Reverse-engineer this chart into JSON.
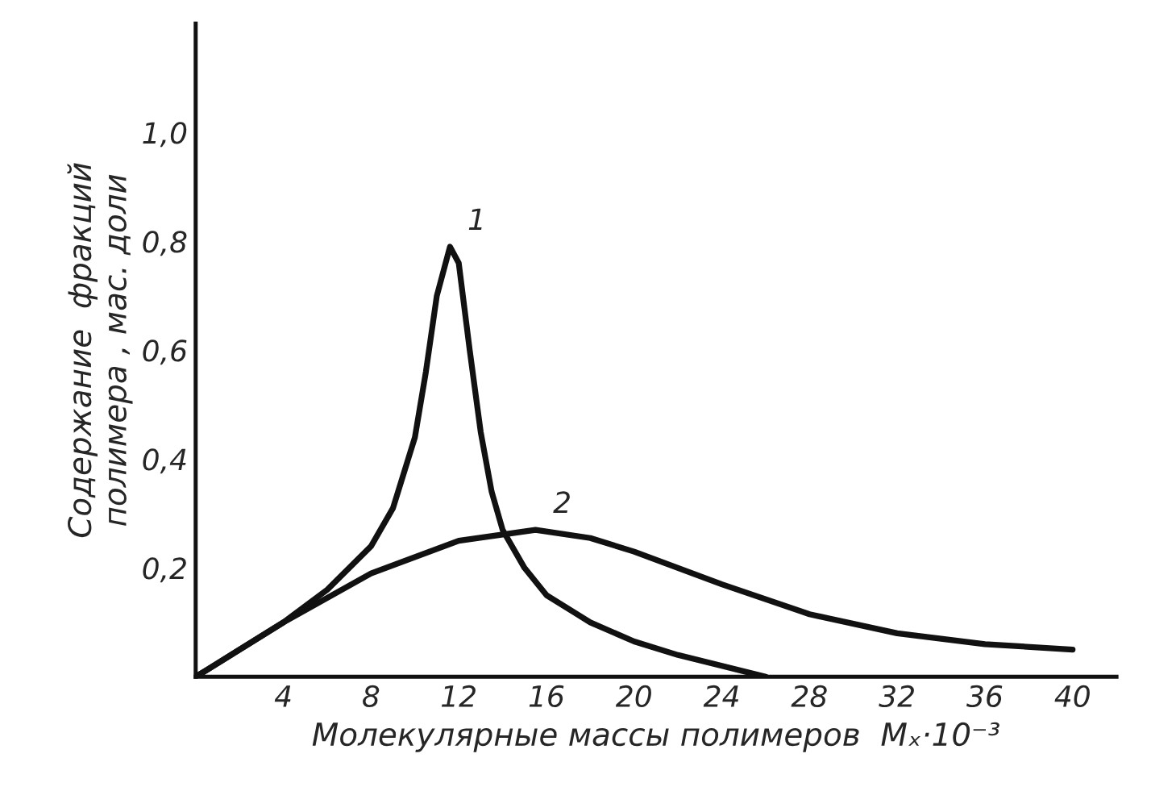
{
  "chart_data": {
    "type": "line",
    "xlabel": "Молекулярные массы полимеров  Mₓ·10⁻³",
    "ylabel": "Содержание  фракций\nполимера , мас. доли",
    "xlim": [
      0,
      42
    ],
    "ylim": [
      0,
      1.2
    ],
    "xticks": [
      4,
      8,
      12,
      16,
      20,
      24,
      28,
      32,
      36,
      40
    ],
    "yticks": [
      {
        "value": 0.2,
        "label": "0,2"
      },
      {
        "value": 0.4,
        "label": "0,4"
      },
      {
        "value": 0.6,
        "label": "0,6"
      },
      {
        "value": 0.8,
        "label": "0,8"
      },
      {
        "value": 1.0,
        "label": "1,0"
      }
    ],
    "grid": false,
    "legend": false,
    "marker": "none",
    "line_style": "solid",
    "series": [
      {
        "name": "1",
        "color": "#111111",
        "x": [
          0,
          2,
          4,
          6,
          8,
          9,
          10,
          10.5,
          11,
          11.6,
          12,
          12.5,
          13,
          13.5,
          14,
          15,
          16,
          18,
          20,
          22,
          24,
          26
        ],
        "values": [
          0,
          0.05,
          0.1,
          0.16,
          0.24,
          0.31,
          0.44,
          0.56,
          0.7,
          0.79,
          0.76,
          0.6,
          0.45,
          0.34,
          0.27,
          0.2,
          0.15,
          0.1,
          0.065,
          0.04,
          0.02,
          0
        ]
      },
      {
        "name": "2",
        "color": "#111111",
        "x": [
          0,
          4,
          8,
          12,
          15.5,
          18,
          20,
          24,
          28,
          32,
          36,
          40
        ],
        "values": [
          0,
          0.1,
          0.19,
          0.25,
          0.27,
          0.255,
          0.23,
          0.17,
          0.115,
          0.08,
          0.06,
          0.05
        ]
      }
    ]
  }
}
